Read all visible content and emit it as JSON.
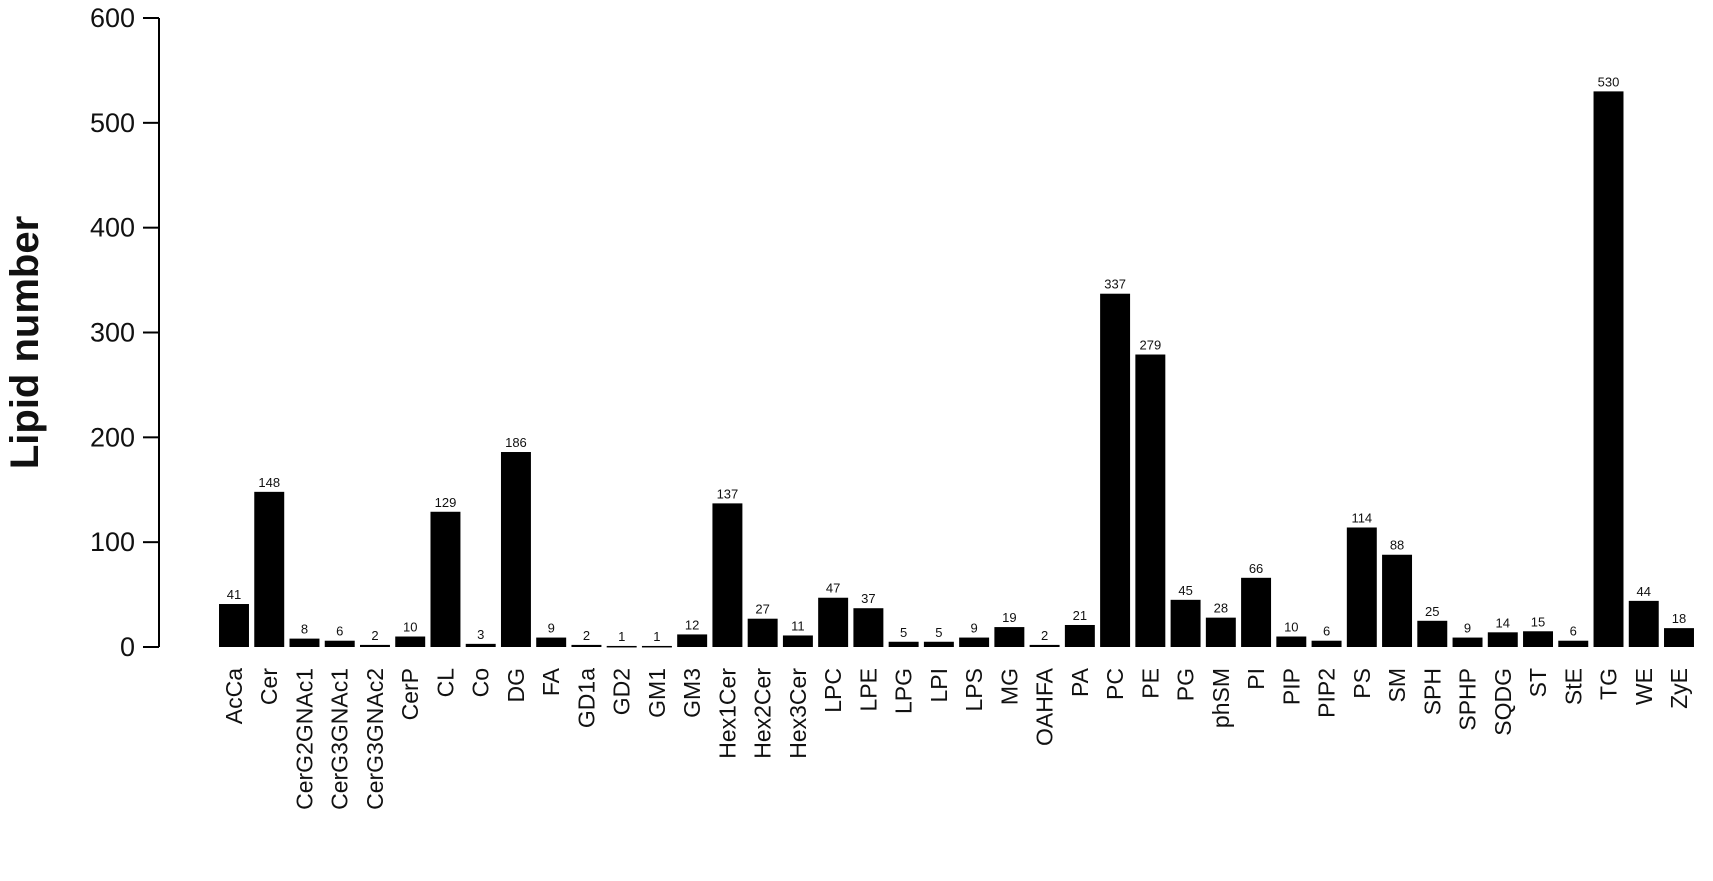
{
  "chart_data": {
    "type": "bar",
    "xlabel": "",
    "ylabel": "Lipid number",
    "ylim": [
      0,
      600
    ],
    "yticks": [
      0,
      100,
      200,
      300,
      400,
      500,
      600
    ],
    "grid": false,
    "bar_color": "#000000",
    "categories": [
      "AcCa",
      "Cer",
      "CerG2GNAc1",
      "CerG3GNAc1",
      "CerG3GNAc2",
      "CerP",
      "CL",
      "Co",
      "DG",
      "FA",
      "GD1a",
      "GD2",
      "GM1",
      "GM3",
      "Hex1Cer",
      "Hex2Cer",
      "Hex3Cer",
      "LPC",
      "LPE",
      "LPG",
      "LPI",
      "LPS",
      "MG",
      "OAHFA",
      "PA",
      "PC",
      "PE",
      "PG",
      "phSM",
      "PI",
      "PIP",
      "PIP2",
      "PS",
      "SM",
      "SPH",
      "SPHP",
      "SQDG",
      "ST",
      "StE",
      "TG",
      "WE",
      "ZyE"
    ],
    "values": [
      41,
      148,
      8,
      6,
      2,
      10,
      129,
      3,
      186,
      9,
      2,
      1,
      1,
      12,
      137,
      27,
      11,
      47,
      37,
      5,
      5,
      9,
      19,
      2,
      21,
      337,
      279,
      45,
      28,
      66,
      10,
      6,
      114,
      88,
      25,
      9,
      14,
      15,
      6,
      530,
      44,
      18
    ]
  }
}
